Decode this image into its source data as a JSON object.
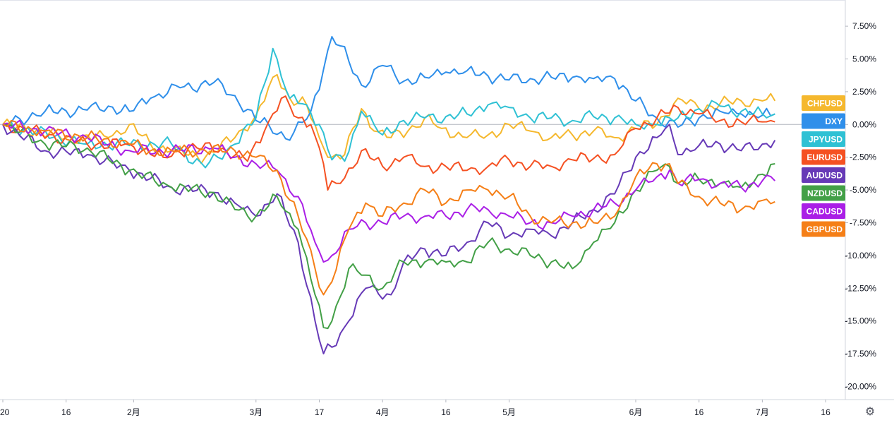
{
  "chart_data": {
    "type": "line",
    "title": "",
    "xlabel": "",
    "ylabel": "",
    "ylim": [
      -21,
      9.5
    ],
    "y_ticks": [
      7.5,
      5,
      2.5,
      0,
      -2.5,
      -5,
      -7.5,
      -10,
      -12.5,
      -15,
      -17.5,
      -20
    ],
    "y_tick_labels": [
      "7.50%",
      "5.00%",
      "2.50%",
      "0.00%",
      "-2.50%",
      "-5.00%",
      "-7.50%",
      "-10.00%",
      "-12.50%",
      "-15.00%",
      "-17.50%",
      "-20.00%"
    ],
    "x_tick_labels": [
      "20",
      "16",
      "2月",
      "3月",
      "17",
      "4月",
      "16",
      "5月",
      "6月",
      "16",
      "7月",
      "16"
    ],
    "x_tick_index": [
      0,
      15,
      31,
      60,
      75,
      90,
      105,
      120,
      150,
      165,
      180,
      195
    ],
    "x_count": 200,
    "zero_line": true,
    "grid": false,
    "legend": "right-axis",
    "series": [
      {
        "name": "CHFUSD",
        "color": "#f5b82e",
        "anchors": [
          [
            0,
            0
          ],
          [
            15,
            -1
          ],
          [
            25,
            -1
          ],
          [
            30,
            0
          ],
          [
            35,
            -1.5
          ],
          [
            40,
            -2
          ],
          [
            48,
            -2.5
          ],
          [
            55,
            -1
          ],
          [
            60,
            0.7
          ],
          [
            65,
            3.8
          ],
          [
            68,
            2
          ],
          [
            72,
            1.5
          ],
          [
            75,
            -1
          ],
          [
            78,
            -2.5
          ],
          [
            81,
            -2.3
          ],
          [
            85,
            1.2
          ],
          [
            88,
            -0.5
          ],
          [
            92,
            -1
          ],
          [
            96,
            -0.5
          ],
          [
            100,
            0.5
          ],
          [
            104,
            -0.3
          ],
          [
            110,
            -1
          ],
          [
            115,
            -0.8
          ],
          [
            120,
            0
          ],
          [
            125,
            -0.5
          ],
          [
            130,
            -1
          ],
          [
            135,
            -0.8
          ],
          [
            140,
            -0.5
          ],
          [
            145,
            -1
          ],
          [
            150,
            -0.3
          ],
          [
            155,
            0
          ],
          [
            160,
            2
          ],
          [
            165,
            1.2
          ],
          [
            170,
            1.6
          ],
          [
            175,
            1.8
          ],
          [
            180,
            1.8
          ],
          [
            183,
            1.8
          ]
        ]
      },
      {
        "name": "DXY",
        "color": "#2f8fea",
        "anchors": [
          [
            0,
            0
          ],
          [
            10,
            1
          ],
          [
            20,
            1.1
          ],
          [
            25,
            1.4
          ],
          [
            30,
            1
          ],
          [
            35,
            2
          ],
          [
            42,
            2.8
          ],
          [
            50,
            3.2
          ],
          [
            55,
            2.2
          ],
          [
            60,
            0.3
          ],
          [
            63,
            0
          ],
          [
            68,
            -1.2
          ],
          [
            73,
            1
          ],
          [
            76,
            4.2
          ],
          [
            78,
            6.7
          ],
          [
            80,
            6
          ],
          [
            85,
            3
          ],
          [
            90,
            4.5
          ],
          [
            95,
            3.3
          ],
          [
            100,
            3.6
          ],
          [
            105,
            4
          ],
          [
            110,
            4.1
          ],
          [
            115,
            3.7
          ],
          [
            120,
            3.4
          ],
          [
            125,
            3.5
          ],
          [
            130,
            3.6
          ],
          [
            135,
            3.6
          ],
          [
            140,
            3.5
          ],
          [
            145,
            3.5
          ],
          [
            150,
            1.8
          ],
          [
            155,
            0.5
          ],
          [
            160,
            -0.2
          ],
          [
            165,
            0.5
          ],
          [
            170,
            1
          ],
          [
            175,
            0.8
          ],
          [
            180,
            0.7
          ],
          [
            183,
            0.8
          ]
        ]
      },
      {
        "name": "JPYUSD",
        "color": "#2fc1d4",
        "anchors": [
          [
            0,
            0
          ],
          [
            20,
            -1.5
          ],
          [
            40,
            -1.5
          ],
          [
            48,
            -3.3
          ],
          [
            55,
            -1.5
          ],
          [
            60,
            0.5
          ],
          [
            64,
            5.8
          ],
          [
            68,
            2
          ],
          [
            72,
            1.5
          ],
          [
            75,
            0
          ],
          [
            78,
            -2.7
          ],
          [
            81,
            -2.8
          ],
          [
            85,
            1
          ],
          [
            90,
            -0.8
          ],
          [
            95,
            0.3
          ],
          [
            100,
            0.5
          ],
          [
            105,
            0.6
          ],
          [
            110,
            0.8
          ],
          [
            115,
            1.5
          ],
          [
            120,
            1.3
          ],
          [
            125,
            0.5
          ],
          [
            130,
            0.5
          ],
          [
            135,
            0.3
          ],
          [
            140,
            0.6
          ],
          [
            145,
            0.5
          ],
          [
            150,
            0
          ],
          [
            155,
            0
          ],
          [
            160,
            0.5
          ],
          [
            165,
            1.2
          ],
          [
            170,
            1.4
          ],
          [
            175,
            1
          ],
          [
            180,
            0.8
          ],
          [
            183,
            0.8
          ]
        ]
      },
      {
        "name": "EURUSD",
        "color": "#f55122",
        "anchors": [
          [
            0,
            0
          ],
          [
            20,
            -1.5
          ],
          [
            30,
            -1.5
          ],
          [
            38,
            -2.5
          ],
          [
            44,
            -1.8
          ],
          [
            52,
            -1.8
          ],
          [
            58,
            -2.8
          ],
          [
            62,
            -0.5
          ],
          [
            66,
            2
          ],
          [
            70,
            0.5
          ],
          [
            73,
            0
          ],
          [
            76,
            -3
          ],
          [
            77,
            -5
          ],
          [
            80,
            -4.5
          ],
          [
            85,
            -2
          ],
          [
            90,
            -3.2
          ],
          [
            95,
            -2.5
          ],
          [
            100,
            -3.2
          ],
          [
            105,
            -3.2
          ],
          [
            110,
            -3.5
          ],
          [
            115,
            -3.2
          ],
          [
            120,
            -2.7
          ],
          [
            125,
            -3.2
          ],
          [
            130,
            -3.2
          ],
          [
            135,
            -2.7
          ],
          [
            140,
            -2.6
          ],
          [
            145,
            -2.3
          ],
          [
            150,
            -0.3
          ],
          [
            155,
            0.5
          ],
          [
            160,
            1.3
          ],
          [
            165,
            0.8
          ],
          [
            170,
            0.3
          ],
          [
            175,
            0.2
          ],
          [
            180,
            0.2
          ],
          [
            183,
            0.2
          ]
        ]
      },
      {
        "name": "AUDUSD",
        "color": "#673ab7",
        "anchors": [
          [
            0,
            0
          ],
          [
            10,
            -2
          ],
          [
            20,
            -2.3
          ],
          [
            30,
            -3.5
          ],
          [
            40,
            -4.8
          ],
          [
            50,
            -5.2
          ],
          [
            55,
            -6
          ],
          [
            60,
            -7
          ],
          [
            65,
            -5.3
          ],
          [
            70,
            -9
          ],
          [
            74,
            -15
          ],
          [
            76,
            -17.5
          ],
          [
            78,
            -17
          ],
          [
            82,
            -15
          ],
          [
            86,
            -12.5
          ],
          [
            92,
            -13
          ],
          [
            95,
            -10.5
          ],
          [
            100,
            -9.5
          ],
          [
            105,
            -10
          ],
          [
            110,
            -9
          ],
          [
            115,
            -7.5
          ],
          [
            120,
            -8.5
          ],
          [
            125,
            -8
          ],
          [
            130,
            -8.5
          ],
          [
            135,
            -7.5
          ],
          [
            140,
            -6.5
          ],
          [
            145,
            -5.3
          ],
          [
            150,
            -2.5
          ],
          [
            155,
            -1
          ],
          [
            158,
            0
          ],
          [
            160,
            -2.3
          ],
          [
            165,
            -1.6
          ],
          [
            170,
            -1.5
          ],
          [
            175,
            -2
          ],
          [
            180,
            -1.5
          ],
          [
            183,
            -1.2
          ]
        ]
      },
      {
        "name": "NZDUSD",
        "color": "#43a047",
        "anchors": [
          [
            0,
            0
          ],
          [
            10,
            -1.5
          ],
          [
            20,
            -1.8
          ],
          [
            30,
            -3.5
          ],
          [
            40,
            -4.8
          ],
          [
            50,
            -5.2
          ],
          [
            55,
            -6.5
          ],
          [
            60,
            -7
          ],
          [
            65,
            -5.5
          ],
          [
            70,
            -8
          ],
          [
            74,
            -13
          ],
          [
            76,
            -15.5
          ],
          [
            78,
            -15
          ],
          [
            82,
            -11
          ],
          [
            86,
            -11.5
          ],
          [
            90,
            -12.5
          ],
          [
            95,
            -10.5
          ],
          [
            100,
            -10.5
          ],
          [
            105,
            -10.5
          ],
          [
            110,
            -10.5
          ],
          [
            115,
            -9
          ],
          [
            120,
            -9.5
          ],
          [
            125,
            -10
          ],
          [
            130,
            -10.5
          ],
          [
            135,
            -11
          ],
          [
            140,
            -9
          ],
          [
            145,
            -7.5
          ],
          [
            150,
            -5
          ],
          [
            155,
            -3.5
          ],
          [
            158,
            -3.2
          ],
          [
            160,
            -4.5
          ],
          [
            165,
            -4.2
          ],
          [
            170,
            -4.5
          ],
          [
            175,
            -4.8
          ],
          [
            180,
            -3.8
          ],
          [
            183,
            -3
          ]
        ]
      },
      {
        "name": "CADUSD",
        "color": "#aa1fe6",
        "anchors": [
          [
            0,
            0
          ],
          [
            10,
            -0.5
          ],
          [
            20,
            -1
          ],
          [
            30,
            -2
          ],
          [
            40,
            -2
          ],
          [
            50,
            -1.8
          ],
          [
            55,
            -2.5
          ],
          [
            60,
            -3
          ],
          [
            65,
            -3.5
          ],
          [
            70,
            -5.5
          ],
          [
            74,
            -9
          ],
          [
            76,
            -10.5
          ],
          [
            78,
            -10
          ],
          [
            82,
            -8
          ],
          [
            86,
            -7.5
          ],
          [
            90,
            -7.5
          ],
          [
            95,
            -7
          ],
          [
            100,
            -7
          ],
          [
            105,
            -7
          ],
          [
            110,
            -6.5
          ],
          [
            115,
            -6.5
          ],
          [
            120,
            -7
          ],
          [
            125,
            -7.5
          ],
          [
            130,
            -7.5
          ],
          [
            135,
            -7
          ],
          [
            140,
            -6.5
          ],
          [
            145,
            -6
          ],
          [
            150,
            -5
          ],
          [
            155,
            -4
          ],
          [
            158,
            -3.5
          ],
          [
            160,
            -4.5
          ],
          [
            165,
            -4.2
          ],
          [
            170,
            -4.5
          ],
          [
            175,
            -4.8
          ],
          [
            180,
            -4.3
          ],
          [
            183,
            -4.3
          ]
        ]
      },
      {
        "name": "GBPUSD",
        "color": "#f57f17",
        "anchors": [
          [
            0,
            0
          ],
          [
            10,
            -0.5
          ],
          [
            20,
            -1
          ],
          [
            30,
            -1.5
          ],
          [
            35,
            -2
          ],
          [
            40,
            -2
          ],
          [
            48,
            -2
          ],
          [
            55,
            -2
          ],
          [
            60,
            -2.5
          ],
          [
            65,
            -3.5
          ],
          [
            70,
            -7
          ],
          [
            74,
            -11
          ],
          [
            76,
            -13
          ],
          [
            78,
            -12
          ],
          [
            82,
            -8
          ],
          [
            86,
            -6
          ],
          [
            90,
            -7
          ],
          [
            95,
            -6
          ],
          [
            100,
            -5
          ],
          [
            105,
            -6
          ],
          [
            110,
            -5
          ],
          [
            115,
            -5
          ],
          [
            120,
            -5.5
          ],
          [
            125,
            -7
          ],
          [
            130,
            -7.5
          ],
          [
            135,
            -7.5
          ],
          [
            140,
            -7.5
          ],
          [
            145,
            -7
          ],
          [
            150,
            -4
          ],
          [
            155,
            -3
          ],
          [
            158,
            -3
          ],
          [
            160,
            -4.5
          ],
          [
            165,
            -5.5
          ],
          [
            170,
            -6
          ],
          [
            175,
            -6.5
          ],
          [
            180,
            -5.8
          ],
          [
            183,
            -5.9
          ]
        ]
      }
    ]
  },
  "ui": {
    "settings_icon": "gear-icon"
  }
}
